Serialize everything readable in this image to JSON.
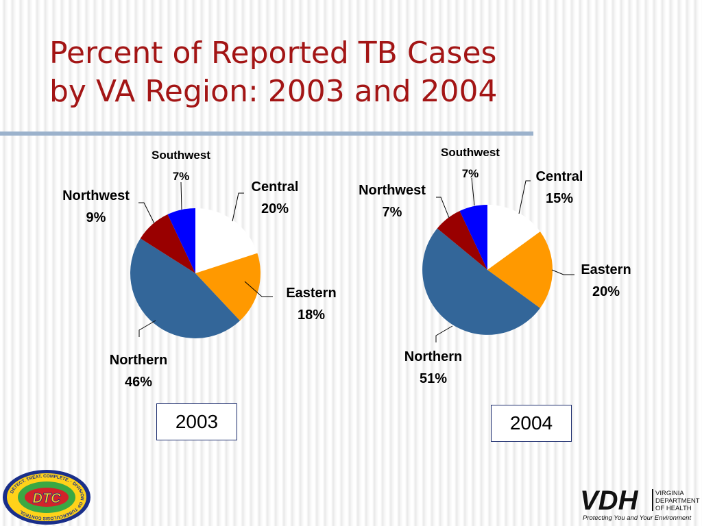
{
  "slide": {
    "title_line1": "Percent of Reported TB Cases",
    "title_line2": "by VA Region: 2003 and 2004"
  },
  "colors": {
    "title": "#a31515",
    "Central": "#ffffff",
    "Eastern": "#ff9900",
    "Northern": "#336699",
    "Northwest": "#990000",
    "Southwest": "#0000ff"
  },
  "chart_data": [
    {
      "type": "pie",
      "title": "2003",
      "slices": [
        {
          "label": "Central",
          "value": 20,
          "display": "20%"
        },
        {
          "label": "Eastern",
          "value": 18,
          "display": "18%"
        },
        {
          "label": "Northern",
          "value": 46,
          "display": "46%"
        },
        {
          "label": "Northwest",
          "value": 9,
          "display": "9%"
        },
        {
          "label": "Southwest",
          "value": 7,
          "display": "7%"
        }
      ]
    },
    {
      "type": "pie",
      "title": "2004",
      "slices": [
        {
          "label": "Central",
          "value": 15,
          "display": "15%"
        },
        {
          "label": "Eastern",
          "value": 20,
          "display": "20%"
        },
        {
          "label": "Northern",
          "value": 51,
          "display": "51%"
        },
        {
          "label": "Northwest",
          "value": 7,
          "display": "7%"
        },
        {
          "label": "Southwest",
          "value": 7,
          "display": "7%"
        }
      ]
    }
  ],
  "logos": {
    "dtc_badge": "DTC",
    "dtc_ring_text": "DETECT. TREAT. COMPLETE. · DIVISION OF TUBERCULOSIS CONTROL",
    "vdh_mark": "VDH",
    "vdh_name_line1": "VIRGINIA",
    "vdh_name_line2": "DEPARTMENT",
    "vdh_name_line3": "OF HEALTH",
    "vdh_tagline": "Protecting You and Your Environment"
  }
}
